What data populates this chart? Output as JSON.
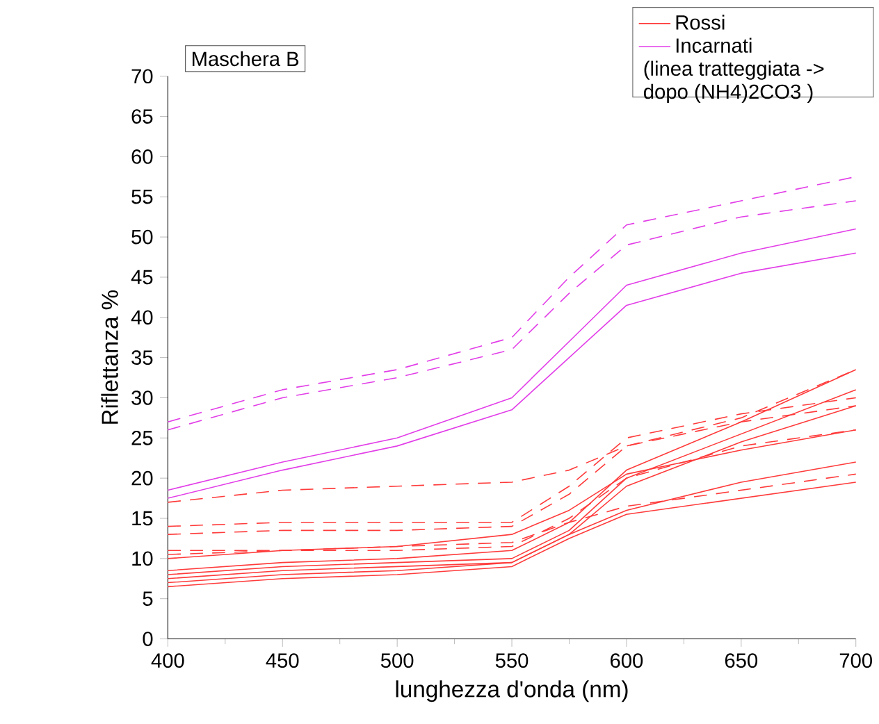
{
  "chart_data": {
    "type": "line",
    "xlabel": "lunghezza d'onda (nm)",
    "ylabel": "Riflettanza %",
    "annotations": [
      "Maschera B",
      "(linea tratteggiata -> dopo (NH4)2CO3 )"
    ],
    "x": [
      400,
      450,
      500,
      550,
      575,
      600,
      650,
      700
    ],
    "xlim": [
      400,
      700
    ],
    "ylim": [
      0,
      70
    ],
    "xticks": [
      400,
      450,
      500,
      550,
      600,
      650,
      700
    ],
    "yticks": [
      0,
      5,
      10,
      15,
      20,
      25,
      30,
      35,
      40,
      45,
      50,
      55,
      60,
      65,
      70
    ],
    "legend": "top right",
    "series": [
      {
        "name": "Rossi",
        "color": "#ff3b3b",
        "line_style": "solid",
        "values": [
          10,
          11,
          11.5,
          13,
          16,
          20.5,
          23.5,
          26
        ]
      },
      {
        "color": "#ff3b3b",
        "line_style": "solid",
        "values": [
          8.5,
          9.5,
          10,
          11,
          14.5,
          21,
          27,
          33.5
        ]
      },
      {
        "color": "#ff3b3b",
        "line_style": "solid",
        "values": [
          8,
          9,
          9.5,
          10,
          13.5,
          20,
          25.5,
          31
        ]
      },
      {
        "color": "#ff3b3b",
        "line_style": "solid",
        "values": [
          7.5,
          8.5,
          9,
          9.5,
          13,
          19,
          24.5,
          29
        ]
      },
      {
        "color": "#ff3b3b",
        "line_style": "solid",
        "values": [
          7,
          8,
          8.5,
          9.5,
          13,
          16,
          19.5,
          22
        ]
      },
      {
        "color": "#ff3b3b",
        "line_style": "solid",
        "values": [
          6.5,
          7.5,
          8,
          9,
          12.5,
          15.5,
          17.5,
          19.5
        ]
      },
      {
        "color": "#ff3b3b",
        "line_style": "dashed",
        "values": [
          17,
          18.5,
          19,
          19.5,
          21,
          24,
          27.5,
          33.5
        ]
      },
      {
        "color": "#ff3b3b",
        "line_style": "dashed",
        "values": [
          14,
          14.5,
          14.5,
          14.5,
          19,
          25,
          28,
          30
        ]
      },
      {
        "color": "#ff3b3b",
        "line_style": "dashed",
        "values": [
          13,
          13.5,
          13.5,
          14,
          18,
          24,
          27,
          29
        ]
      },
      {
        "color": "#ff3b3b",
        "line_style": "dashed",
        "values": [
          11,
          11,
          11.5,
          12,
          14.5,
          16.5,
          18.5,
          20.5
        ]
      },
      {
        "color": "#ff3b3b",
        "line_style": "dashed",
        "values": [
          10.5,
          11,
          11,
          11.5,
          15,
          20,
          24,
          26
        ]
      },
      {
        "name": "Incarnati",
        "color": "#e23ee8",
        "line_style": "solid",
        "values": [
          18.5,
          22,
          25,
          30,
          37,
          44,
          48,
          51
        ]
      },
      {
        "color": "#e23ee8",
        "line_style": "solid",
        "values": [
          17.5,
          21,
          24,
          28.5,
          35,
          41.5,
          45.5,
          48
        ]
      },
      {
        "color": "#e23ee8",
        "line_style": "dashed",
        "values": [
          27,
          31,
          33.5,
          37.5,
          45,
          51.5,
          54.5,
          57.5
        ]
      },
      {
        "color": "#e23ee8",
        "line_style": "dashed",
        "values": [
          26,
          30,
          32.5,
          36,
          43,
          49,
          52.5,
          54.5
        ]
      }
    ]
  }
}
